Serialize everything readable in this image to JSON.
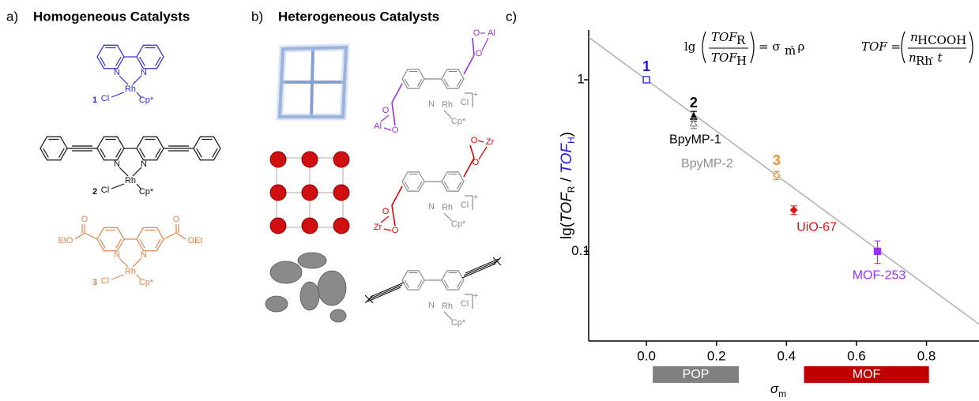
{
  "panel_a": {
    "label": "a)",
    "title": "Homogeneous Catalysts",
    "structures": [
      {
        "number": "1",
        "atoms": [
          "N",
          "N",
          "Rh",
          "Cl",
          "Cp*"
        ]
      },
      {
        "number": "2",
        "atoms": [
          "N",
          "N",
          "Rh",
          "Cl",
          "Cp*"
        ]
      },
      {
        "number": "3",
        "atoms": [
          "O",
          "EtO",
          "O",
          "OEt",
          "N",
          "N",
          "Rh",
          "Cl",
          "Cp*"
        ]
      }
    ]
  },
  "panel_b": {
    "label": "b)",
    "title": "Heterogeneous Catalysts",
    "structures": [
      {
        "atoms": [
          "O",
          "Al",
          "O",
          "O",
          "Al",
          "O",
          "N",
          "Rh",
          "Cl",
          "+",
          "Cp*"
        ]
      },
      {
        "atoms": [
          "O",
          "Zr",
          "O",
          "O",
          "Zr",
          "O",
          "N",
          "Rh",
          "Cl",
          "+",
          "Cp*"
        ]
      },
      {
        "atoms": [
          "N",
          "Rh",
          "Cl",
          "+",
          "Cp*"
        ]
      }
    ]
  },
  "chart_data": {
    "type": "scatter",
    "label": "c)",
    "log_y": true,
    "xlim": [
      -0.165,
      0.95
    ],
    "ylim": [
      0.03,
      1.95
    ],
    "xticks": [
      {
        "value": 0,
        "label": "0.0"
      },
      0.2,
      0.4,
      0.6,
      0.8
    ],
    "yticks": [
      0.1,
      1
    ],
    "xlabel": {
      "symbol": "σ",
      "sub": "m"
    },
    "ylabel": [
      "lg(",
      "TOF",
      "R",
      " / ",
      "TOF",
      "H",
      ")"
    ],
    "equations": [
      [
        "lg",
        "TOF",
        "R",
        "TOF",
        "H",
        "= σ",
        "m",
        " · ρ"
      ],
      [
        "TOF =",
        "n",
        "HCOOH",
        "n",
        "Rh",
        " · t"
      ]
    ],
    "fit_line": {
      "x": [
        -0.165,
        0.95
      ],
      "values": [
        1.77,
        0.0376
      ],
      "color": "#b0b0b0"
    },
    "points": [
      {
        "labels": [
          "1"
        ],
        "x": 0,
        "value": 1.0,
        "error": 0.03,
        "color": "#1a1adf",
        "marker": "square"
      },
      {
        "labels": [
          "2",
          "BpyMP-1"
        ],
        "x": 0.135,
        "value": 0.614,
        "error": 0.04,
        "color": "#000000",
        "marker": "triangle"
      },
      {
        "labels": [
          "BpyMP-2"
        ],
        "x": 0.135,
        "value": 0.56,
        "error": 0.04,
        "color": "#8c8c8c",
        "marker": "triangle"
      },
      {
        "labels": [
          "3"
        ],
        "x": 0.372,
        "value": 0.277,
        "error": 0.015,
        "color": "#f0922a",
        "marker": "diamond"
      },
      {
        "labels": [
          "UiO-67"
        ],
        "x": 0.421,
        "value": 0.174,
        "error": 0.01,
        "color": "#e01010",
        "marker": "diamond"
      },
      {
        "labels": [
          "MOF-253"
        ],
        "x": 0.66,
        "value": 0.1,
        "error": 0.015,
        "color": "#9b30ff",
        "marker": "square"
      }
    ],
    "ranges": [
      {
        "label": "POP",
        "from": 0.018,
        "to": 0.264,
        "color": "#808080"
      },
      {
        "label": "MOF",
        "from": 0.45,
        "to": 0.807,
        "color": "#c00000"
      }
    ]
  }
}
